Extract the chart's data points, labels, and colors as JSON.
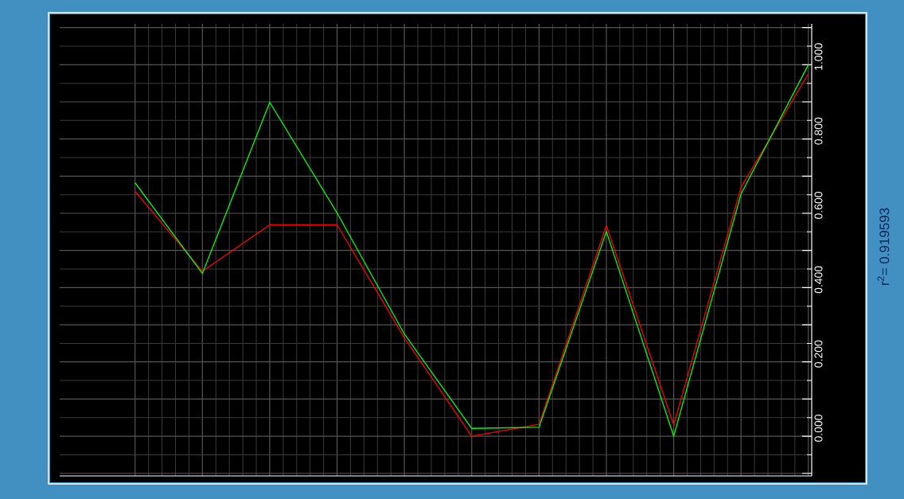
{
  "chart_data": {
    "type": "line",
    "categories": [
      null,
      null,
      null,
      null,
      null,
      null,
      null,
      null,
      null,
      null,
      null
    ],
    "series": [
      {
        "color": "#ff0000",
        "values": [
          0.659,
          0.444,
          0.569,
          0.569,
          0.265,
          0.0,
          0.032,
          0.567,
          0.03,
          0.67,
          0.976
        ]
      },
      {
        "color": "#00ff00",
        "values": [
          0.682,
          0.438,
          0.899,
          0.601,
          0.275,
          0.021,
          0.024,
          0.551,
          0.0,
          0.652,
          1.0
        ]
      }
    ],
    "ylim": [
      -0.107,
      1.11
    ],
    "yticks": [
      {
        "value": -0.1,
        "label": null
      },
      {
        "value": 0,
        "label": "0.000"
      },
      {
        "value": 0.1,
        "label": null
      },
      {
        "value": 0.2,
        "label": "0.200"
      },
      {
        "value": 0.3,
        "label": null
      },
      {
        "value": 0.4,
        "label": "0.400"
      },
      {
        "value": 0.5,
        "label": null
      },
      {
        "value": 0.6,
        "label": "0.600"
      },
      {
        "value": 0.7,
        "label": null
      },
      {
        "value": 0.8,
        "label": "0.800"
      },
      {
        "value": 0.9,
        "label": null
      },
      {
        "value": 1.0,
        "label": "1.000"
      },
      {
        "value": 1.1,
        "label": null
      }
    ],
    "grid": true,
    "marker": "none",
    "line_style": "solid",
    "tick_labels": "y",
    "annotations": [
      "r$^{2}$= 0.919593"
    ]
  }
}
